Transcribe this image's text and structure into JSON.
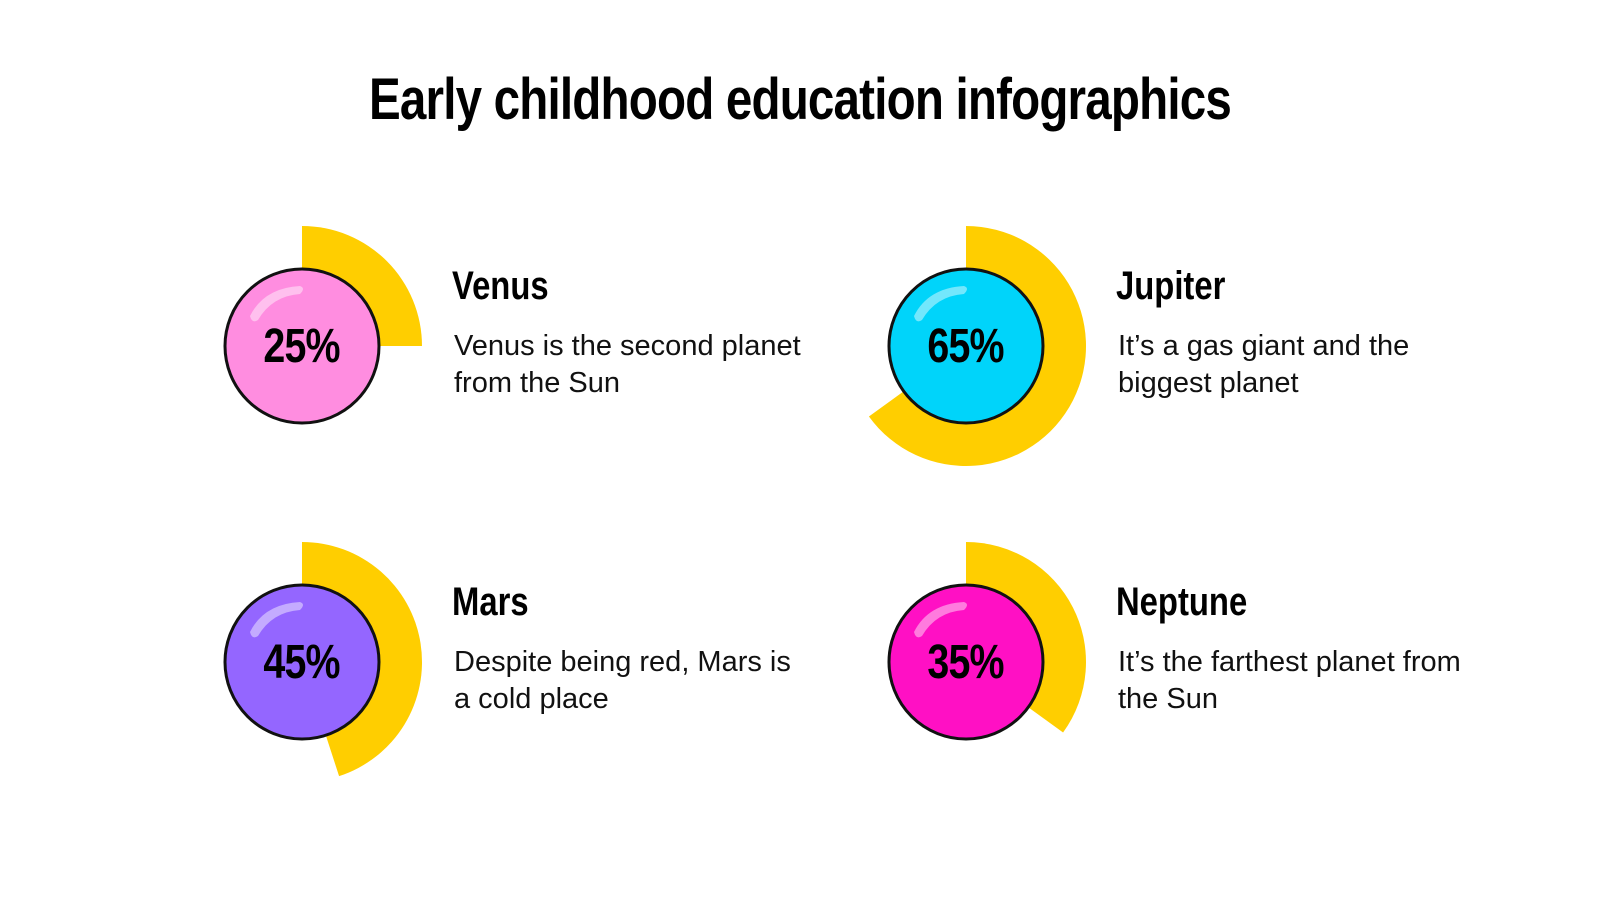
{
  "title": "Early childhood education infographics",
  "colors": {
    "ring": "#FFCE00",
    "outline": "#111111",
    "venus": "#FF8DE0",
    "jupiter": "#00D4FA",
    "mars": "#9466FF",
    "neptune": "#FF10C4"
  },
  "items": [
    {
      "name": "Venus",
      "percent": "25%",
      "value": 25,
      "description": "Venus is the second planet from the Sun",
      "color": "#FF8DE0"
    },
    {
      "name": "Jupiter",
      "percent": "65%",
      "value": 65,
      "description": "It’s a gas giant and the biggest planet",
      "color": "#00D4FA"
    },
    {
      "name": "Mars",
      "percent": "45%",
      "value": 45,
      "description": "Despite being red, Mars is a cold place",
      "color": "#9466FF"
    },
    {
      "name": "Neptune",
      "percent": "35%",
      "value": 35,
      "description": "It’s the farthest planet from the Sun",
      "color": "#FF10C4"
    }
  ],
  "chart_data": {
    "type": "pie",
    "title": "Early childhood education infographics",
    "categories": [
      "Venus",
      "Jupiter",
      "Mars",
      "Neptune"
    ],
    "values": [
      25,
      65,
      45,
      35
    ],
    "units": "%"
  }
}
